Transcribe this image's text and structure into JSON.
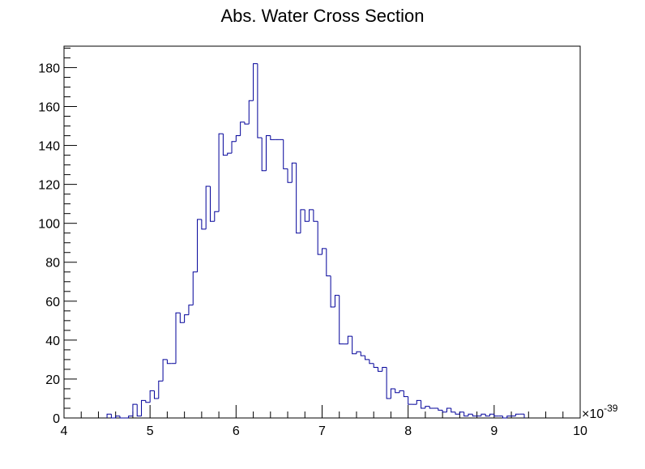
{
  "colors": {
    "line": "#000099",
    "frame": "#000000",
    "background": "#ffffff"
  },
  "chart_data": {
    "type": "histogram",
    "title": "Abs. Water Cross Section",
    "xlabel": "",
    "ylabel": "",
    "x_multiplier": "×10",
    "x_exponent": "-39",
    "xlim": [
      4,
      10
    ],
    "ylim": [
      0,
      191
    ],
    "grid": false,
    "legend": "none",
    "x_ticks": [
      4,
      5,
      6,
      7,
      8,
      9,
      10
    ],
    "y_ticks": [
      0,
      20,
      40,
      60,
      80,
      100,
      120,
      140,
      160,
      180
    ],
    "bin_width": 0.05,
    "bin_edges_start": 4.5,
    "bins": [
      {
        "x0": 4.5,
        "v": 2
      },
      {
        "x0": 4.55,
        "v": 0
      },
      {
        "x0": 4.6,
        "v": 1
      },
      {
        "x0": 4.65,
        "v": 0
      },
      {
        "x0": 4.7,
        "v": 0
      },
      {
        "x0": 4.75,
        "v": 1
      },
      {
        "x0": 4.8,
        "v": 7
      },
      {
        "x0": 4.85,
        "v": 1
      },
      {
        "x0": 4.9,
        "v": 9
      },
      {
        "x0": 4.95,
        "v": 8
      },
      {
        "x0": 5.0,
        "v": 14
      },
      {
        "x0": 5.05,
        "v": 10
      },
      {
        "x0": 5.1,
        "v": 19
      },
      {
        "x0": 5.15,
        "v": 30
      },
      {
        "x0": 5.2,
        "v": 28
      },
      {
        "x0": 5.25,
        "v": 28
      },
      {
        "x0": 5.3,
        "v": 54
      },
      {
        "x0": 5.35,
        "v": 49
      },
      {
        "x0": 5.4,
        "v": 53
      },
      {
        "x0": 5.45,
        "v": 58
      },
      {
        "x0": 5.5,
        "v": 75
      },
      {
        "x0": 5.55,
        "v": 102
      },
      {
        "x0": 5.6,
        "v": 97
      },
      {
        "x0": 5.65,
        "v": 119
      },
      {
        "x0": 5.7,
        "v": 101
      },
      {
        "x0": 5.75,
        "v": 106
      },
      {
        "x0": 5.8,
        "v": 146
      },
      {
        "x0": 5.85,
        "v": 135
      },
      {
        "x0": 5.9,
        "v": 136
      },
      {
        "x0": 5.95,
        "v": 142
      },
      {
        "x0": 6.0,
        "v": 145
      },
      {
        "x0": 6.05,
        "v": 152
      },
      {
        "x0": 6.1,
        "v": 151
      },
      {
        "x0": 6.15,
        "v": 163
      },
      {
        "x0": 6.2,
        "v": 182
      },
      {
        "x0": 6.25,
        "v": 144
      },
      {
        "x0": 6.3,
        "v": 127
      },
      {
        "x0": 6.35,
        "v": 145
      },
      {
        "x0": 6.4,
        "v": 143
      },
      {
        "x0": 6.45,
        "v": 143
      },
      {
        "x0": 6.5,
        "v": 143
      },
      {
        "x0": 6.55,
        "v": 128
      },
      {
        "x0": 6.6,
        "v": 121
      },
      {
        "x0": 6.65,
        "v": 131
      },
      {
        "x0": 6.7,
        "v": 95
      },
      {
        "x0": 6.75,
        "v": 107
      },
      {
        "x0": 6.8,
        "v": 101
      },
      {
        "x0": 6.85,
        "v": 107
      },
      {
        "x0": 6.9,
        "v": 101
      },
      {
        "x0": 6.95,
        "v": 84
      },
      {
        "x0": 7.0,
        "v": 87
      },
      {
        "x0": 7.05,
        "v": 73
      },
      {
        "x0": 7.1,
        "v": 57
      },
      {
        "x0": 7.15,
        "v": 63
      },
      {
        "x0": 7.2,
        "v": 38
      },
      {
        "x0": 7.25,
        "v": 38
      },
      {
        "x0": 7.3,
        "v": 42
      },
      {
        "x0": 7.35,
        "v": 33
      },
      {
        "x0": 7.4,
        "v": 34
      },
      {
        "x0": 7.45,
        "v": 32
      },
      {
        "x0": 7.5,
        "v": 30
      },
      {
        "x0": 7.55,
        "v": 28
      },
      {
        "x0": 7.6,
        "v": 26
      },
      {
        "x0": 7.65,
        "v": 24
      },
      {
        "x0": 7.7,
        "v": 26
      },
      {
        "x0": 7.75,
        "v": 10
      },
      {
        "x0": 7.8,
        "v": 15
      },
      {
        "x0": 7.85,
        "v": 13
      },
      {
        "x0": 7.9,
        "v": 14
      },
      {
        "x0": 7.95,
        "v": 11
      },
      {
        "x0": 8.0,
        "v": 7
      },
      {
        "x0": 8.05,
        "v": 7
      },
      {
        "x0": 8.1,
        "v": 9
      },
      {
        "x0": 8.15,
        "v": 5
      },
      {
        "x0": 8.2,
        "v": 6
      },
      {
        "x0": 8.25,
        "v": 5
      },
      {
        "x0": 8.3,
        "v": 5
      },
      {
        "x0": 8.35,
        "v": 4
      },
      {
        "x0": 8.4,
        "v": 3
      },
      {
        "x0": 8.45,
        "v": 5
      },
      {
        "x0": 8.5,
        "v": 3
      },
      {
        "x0": 8.55,
        "v": 2
      },
      {
        "x0": 8.6,
        "v": 3
      },
      {
        "x0": 8.65,
        "v": 1
      },
      {
        "x0": 8.7,
        "v": 2
      },
      {
        "x0": 8.75,
        "v": 1
      },
      {
        "x0": 8.8,
        "v": 1
      },
      {
        "x0": 8.85,
        "v": 2
      },
      {
        "x0": 8.9,
        "v": 1
      },
      {
        "x0": 8.95,
        "v": 2
      },
      {
        "x0": 9.0,
        "v": 1
      },
      {
        "x0": 9.05,
        "v": 1
      },
      {
        "x0": 9.1,
        "v": 0
      },
      {
        "x0": 9.15,
        "v": 1
      },
      {
        "x0": 9.2,
        "v": 1
      },
      {
        "x0": 9.25,
        "v": 2
      },
      {
        "x0": 9.3,
        "v": 2
      }
    ]
  }
}
